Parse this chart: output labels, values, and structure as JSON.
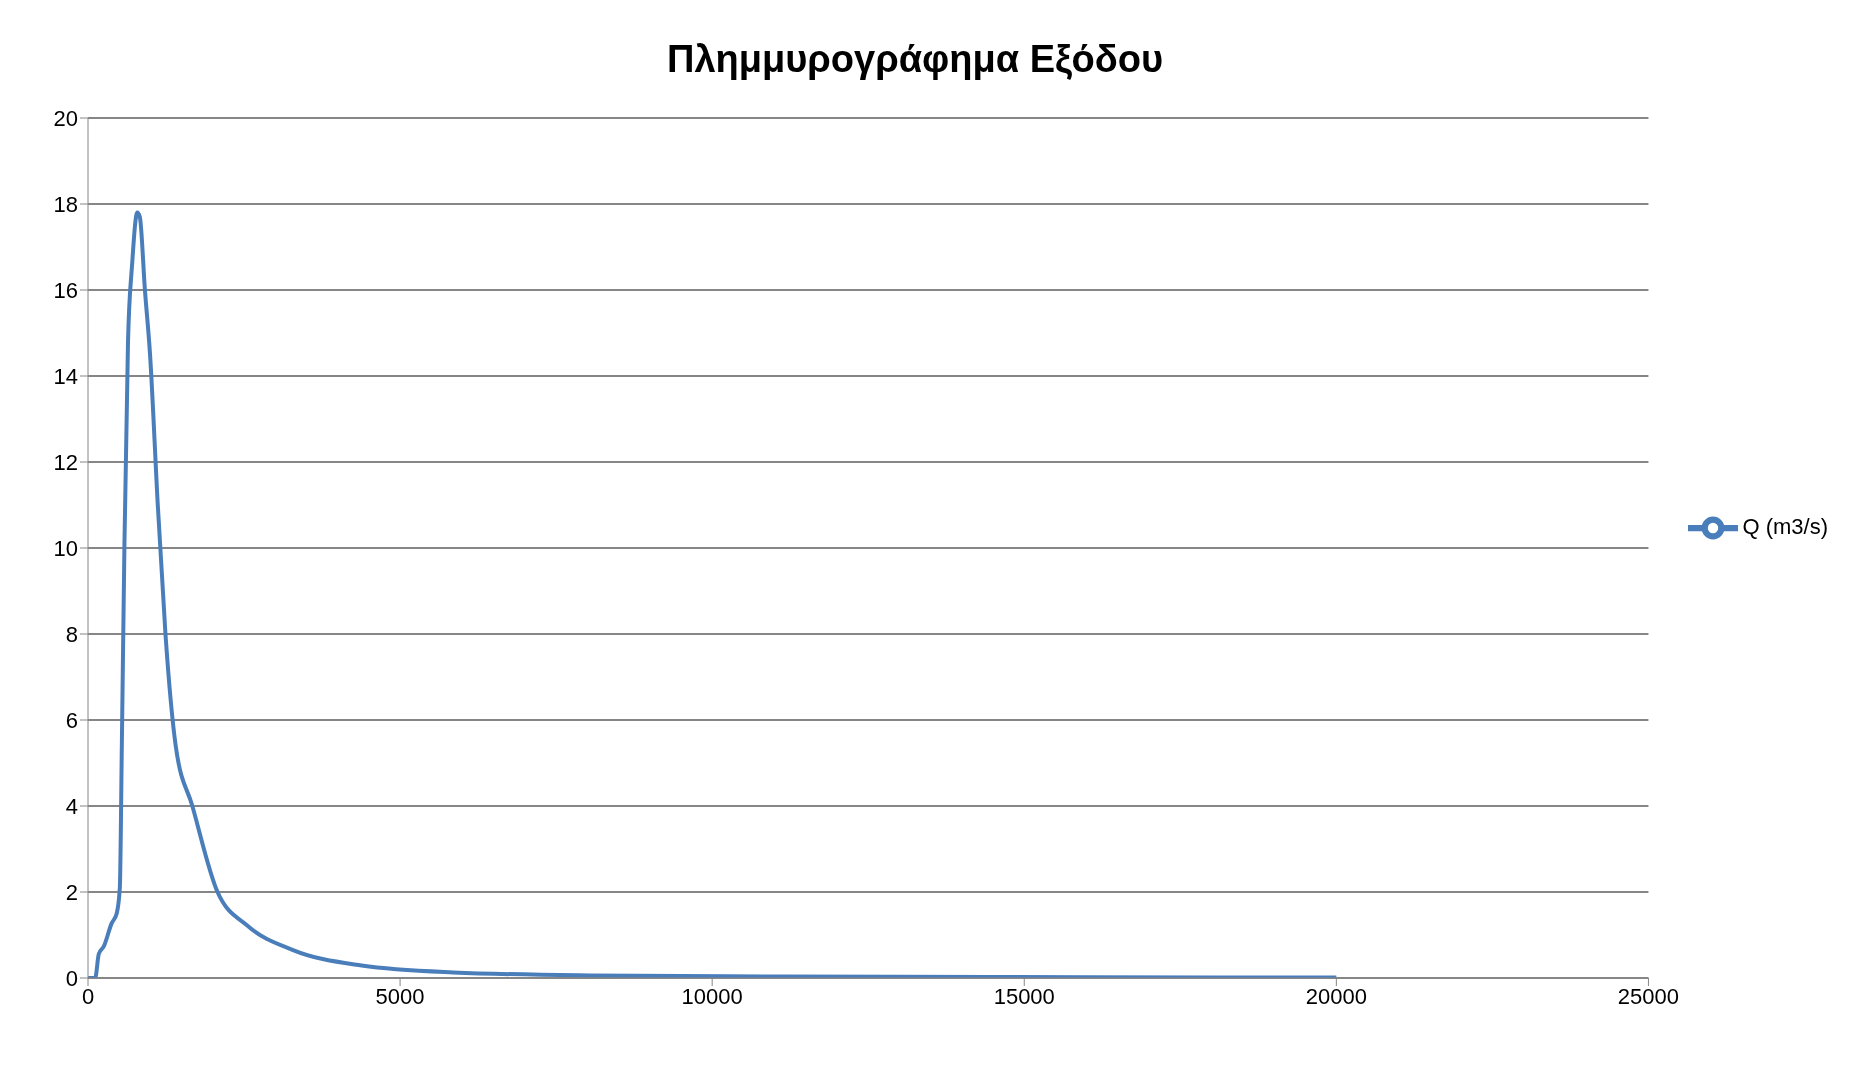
{
  "chart_data": {
    "type": "line",
    "title": "Πλημμυρογράφημα Εξόδου",
    "series": [
      {
        "name": "Q (m3/s)",
        "color": "#4a7ebb",
        "x": [
          0,
          115,
          173,
          255,
          378,
          460,
          510,
          542,
          584,
          641,
          707,
          789,
          830,
          912,
          994,
          1118,
          1241,
          1405,
          1672,
          2075,
          2551,
          3285,
          4384,
          5850,
          8050,
          10250,
          13000,
          16000,
          20000
        ],
        "values": [
          0,
          0,
          0.56,
          0.74,
          1.27,
          1.5,
          2.1,
          5.4,
          10.1,
          14.8,
          16.6,
          17.8,
          17.7,
          16.0,
          14.5,
          11.0,
          8.0,
          5.4,
          4.0,
          2.0,
          1.22,
          0.65,
          0.29,
          0.13,
          0.06,
          0.04,
          0.03,
          0.02,
          0.01
        ]
      }
    ],
    "xlim": [
      0,
      25000
    ],
    "xticks": [
      0,
      5000,
      10000,
      15000,
      20000,
      25000
    ],
    "ylim": [
      0,
      20
    ],
    "yticks": [
      0,
      2,
      4,
      6,
      8,
      10,
      12,
      14,
      16,
      18,
      20
    ],
    "grid": "y",
    "legend": "right",
    "marker": "none",
    "line_style": "solid"
  }
}
